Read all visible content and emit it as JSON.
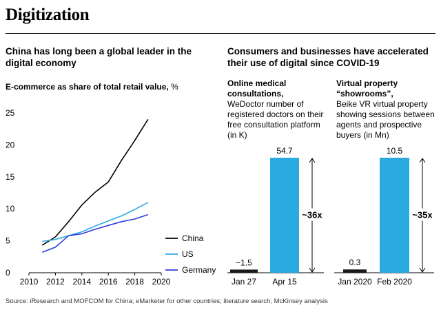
{
  "header": {
    "title": "Digitization"
  },
  "left": {
    "subtitle": "China has long been a global leader in the digital economy",
    "chart_title": "E-commerce as share of total retail value,",
    "chart_unit": "%"
  },
  "right": {
    "subtitle": "Consumers and businesses have accelerated their use of digital since COVID-19",
    "panel1": {
      "heading": "Online medical consultations,",
      "desc": "WeDoctor number of registered doctors on their free consultation platform (in K)"
    },
    "panel2": {
      "heading": "Virtual property “showrooms”,",
      "desc": "Beike VR virtual property showing sessions between agents and prospective buyers (in Mn)"
    }
  },
  "source": "Source: iResearch and MOFCOM for China; eMarketer for other countries; literature search; McKinsey analysis",
  "colors": {
    "china": "#000000",
    "us": "#29abe2",
    "germany": "#2b3cd9",
    "bar": "#29abe2"
  },
  "chart_data": [
    {
      "type": "line",
      "x": [
        2011,
        2012,
        2013,
        2014,
        2015,
        2016,
        2017,
        2018,
        2019
      ],
      "xticks": [
        "2010",
        "2012",
        "2014",
        "2016",
        "2018",
        "2020"
      ],
      "yticks": [
        "0",
        "5",
        "10",
        "15",
        "20",
        "25"
      ],
      "xlim": [
        2010,
        2020
      ],
      "ylim": [
        0,
        25
      ],
      "series": [
        {
          "name": "China",
          "color": "#000000",
          "values": [
            4.3,
            5.6,
            8.0,
            10.6,
            12.6,
            14.2,
            17.6,
            20.7,
            24.0
          ]
        },
        {
          "name": "US",
          "color": "#29abe2",
          "values": [
            4.9,
            5.2,
            5.8,
            6.4,
            7.3,
            8.1,
            8.9,
            9.9,
            11.0
          ]
        },
        {
          "name": "Germany",
          "color": "#2b3cd9",
          "values": [
            3.2,
            4.0,
            5.8,
            6.1,
            6.8,
            7.4,
            8.0,
            8.4,
            9.1
          ]
        }
      ],
      "legend_position": "bottom-right",
      "grid": false
    },
    {
      "type": "bar",
      "categories": [
        "Jan 27",
        "Apr 15"
      ],
      "labels": [
        "~1.5",
        "54.7"
      ],
      "values": [
        1.5,
        54.7
      ],
      "annotation": "~36x",
      "ylim": [
        0,
        54.7
      ]
    },
    {
      "type": "bar",
      "categories": [
        "Jan 2020",
        "Feb 2020"
      ],
      "labels": [
        "0.3",
        "10.5"
      ],
      "values": [
        0.3,
        10.5
      ],
      "annotation": "~35x",
      "ylim": [
        0,
        10.5
      ]
    }
  ]
}
